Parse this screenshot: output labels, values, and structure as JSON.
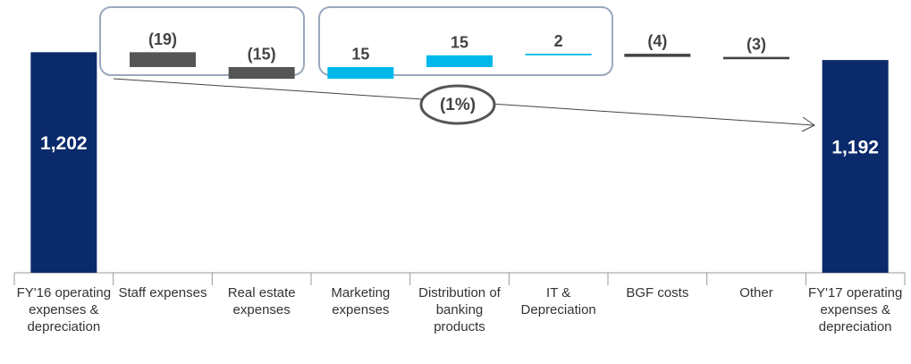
{
  "chart_data": {
    "type": "waterfall",
    "categories": [
      "FY'16 operating expenses & depreciation",
      "Staff expenses",
      "Real estate expenses",
      "Marketing expenses",
      "Distribution of banking products",
      "IT & Depreciation",
      "BGF costs",
      "Other",
      "FY'17 operating expenses & depreciation"
    ],
    "values": [
      1202,
      -19,
      -15,
      15,
      15,
      2,
      -4,
      -3,
      1192
    ],
    "value_labels": [
      "1,202",
      "(19)",
      "(15)",
      "15",
      "15",
      "2",
      "(4)",
      "(3)",
      "1,192"
    ],
    "totals": [
      true,
      false,
      false,
      false,
      false,
      false,
      false,
      false,
      true
    ],
    "colors": [
      "#0b2a6b",
      "#555555",
      "#555555",
      "#00b8ea",
      "#00b8ea",
      "#00b8ea",
      "#444444",
      "#444444",
      "#0b2a6b"
    ],
    "ylim": [
      920,
      1215
    ],
    "annotations": [
      "(1%)"
    ]
  }
}
